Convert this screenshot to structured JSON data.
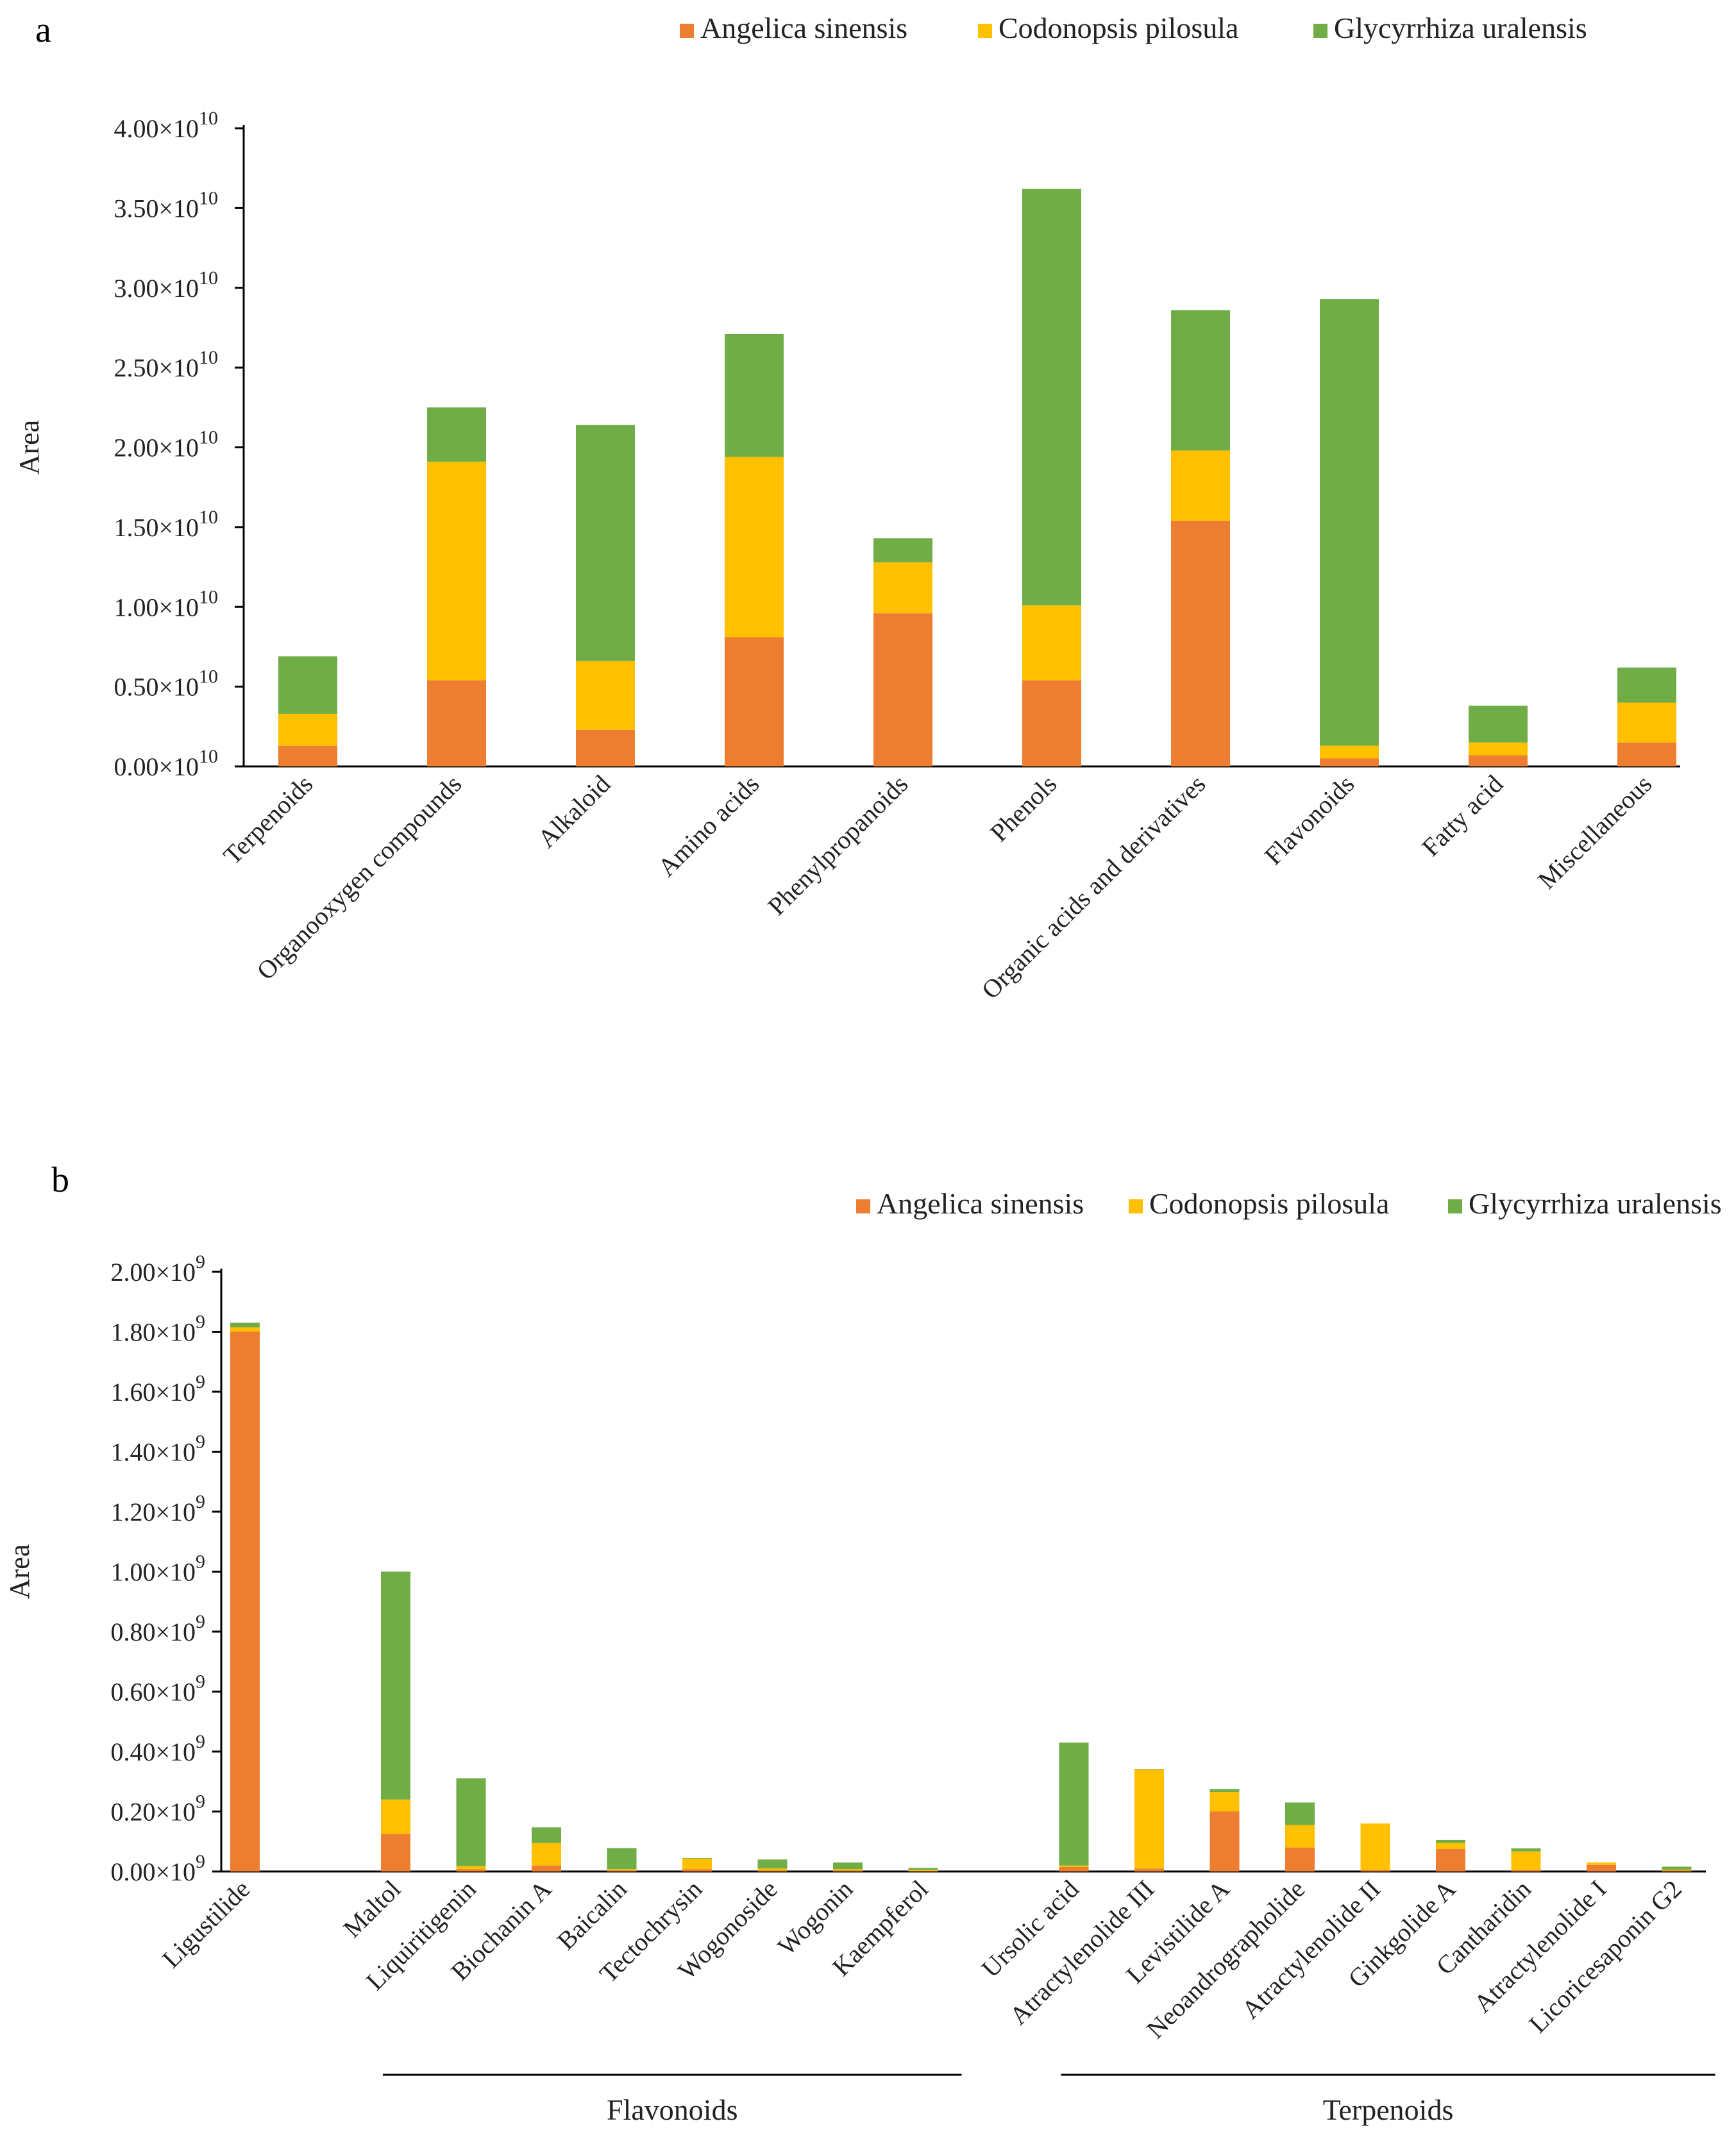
{
  "colors": {
    "angelica": "#ED7D31",
    "codonopsis": "#FFC000",
    "glycyrrhiza": "#70AD47"
  },
  "chart_data": [
    {
      "panel": "a",
      "type": "bar",
      "stacked": true,
      "ylabel": "Area",
      "xlabel": "",
      "ylim": [
        0,
        40000000000.0
      ],
      "ytick_labels": [
        "0.00×10",
        "0.50×10",
        "1.00×10",
        "1.50×10",
        "2.00×10",
        "2.50×10",
        "3.00×10",
        "3.50×10",
        "4.00×10"
      ],
      "ytick_exponent": "10",
      "legend": [
        "Angelica sinensis",
        "Codonopsis pilosula",
        "Glycyrrhiza uralensis"
      ],
      "legend_position": "top-right",
      "categories": [
        "Terpenoids",
        "Organooxygen compounds",
        "Alkaloid",
        "Amino acids",
        "Phenylpropanoids",
        "Phenols",
        "Organic acids and derivatives",
        "Flavonoids",
        "Fatty acid",
        "Miscellaneous"
      ],
      "series": [
        {
          "name": "Angelica sinensis",
          "values": [
            1300000000.0,
            5400000000.0,
            2300000000.0,
            8100000000.0,
            9600000000.0,
            5400000000.0,
            15400000000.0,
            500000000.0,
            700000000.0,
            1500000000.0
          ]
        },
        {
          "name": "Codonopsis pilosula",
          "values": [
            2000000000.0,
            13700000000.0,
            4300000000.0,
            11300000000.0,
            3200000000.0,
            4700000000.0,
            4400000000.0,
            800000000.0,
            800000000.0,
            2500000000.0
          ]
        },
        {
          "name": "Glycyrrhiza uralensis",
          "values": [
            3600000000.0,
            3400000000.0,
            14800000000.0,
            7700000000.0,
            1500000000.0,
            26100000000.0,
            8800000000.0,
            28000000000.0,
            2300000000.0,
            2200000000.0
          ]
        }
      ]
    },
    {
      "panel": "b",
      "type": "bar",
      "stacked": true,
      "ylabel": "Area",
      "xlabel": "",
      "ylim": [
        0,
        2000000000.0
      ],
      "ytick_labels": [
        "0.00×10",
        "0.20×10",
        "0.40×10",
        "0.60×10",
        "0.80×10",
        "1.00×10",
        "1.20×10",
        "1.40×10",
        "1.60×10",
        "1.80×10",
        "2.00×10"
      ],
      "ytick_exponent": "9",
      "legend": [
        "Angelica sinensis",
        "Codonopsis pilosula",
        "Glycyrrhiza uralensis"
      ],
      "legend_position": "top-right",
      "categories": [
        "Ligustilide",
        "",
        "Maltol",
        "Liquiritigenin",
        "Biochanin A",
        "Baicalin",
        "Tectochrysin",
        "Wogonoside",
        "Wogonin",
        "Kaempferol",
        "",
        "Ursolic acid",
        "Atractylenolide III",
        "Levistilide A",
        "Neoandrographolide",
        "Atractylenolide II",
        "Ginkgolide A",
        "Cantharidin",
        "Atractylenolide I",
        "Licoricesaponin G2"
      ],
      "series": [
        {
          "name": "Angelica sinensis",
          "values": [
            1800000000.0,
            0,
            125000000.0,
            8000000.0,
            20000000.0,
            4000000.0,
            8000000.0,
            3000000.0,
            3000000.0,
            2000000.0,
            0,
            15000000.0,
            10000000.0,
            200000000.0,
            80000000.0,
            5000000.0,
            75000000.0,
            5000000.0,
            22000000.0,
            3000000.0
          ]
        },
        {
          "name": "Codonopsis pilosula",
          "values": [
            15000000.0,
            0,
            115000000.0,
            10000000.0,
            75000000.0,
            4000000.0,
            35000000.0,
            7000000.0,
            5000000.0,
            3000000.0,
            0,
            5000000.0,
            330000000.0,
            65000000.0,
            75000000.0,
            155000000.0,
            20000000.0,
            62000000.0,
            8000000.0,
            3000000.0
          ]
        },
        {
          "name": "Glycyrrhiza uralensis",
          "values": [
            15000000.0,
            0,
            760000000.0,
            293000000.0,
            52000000.0,
            70000000.0,
            2000000.0,
            30000000.0,
            22000000.0,
            7000000.0,
            0,
            410000000.0,
            2000000.0,
            10000000.0,
            75000000.0,
            0.0,
            10000000.0,
            10000000.0,
            0.0,
            10000000.0
          ]
        }
      ],
      "groups": [
        {
          "label": "Flavonoids",
          "from": "Maltol",
          "to": "Kaempferol"
        },
        {
          "label": "Terpenoids",
          "from": "Ursolic acid",
          "to": "Licoricesaponin G2"
        }
      ]
    }
  ]
}
